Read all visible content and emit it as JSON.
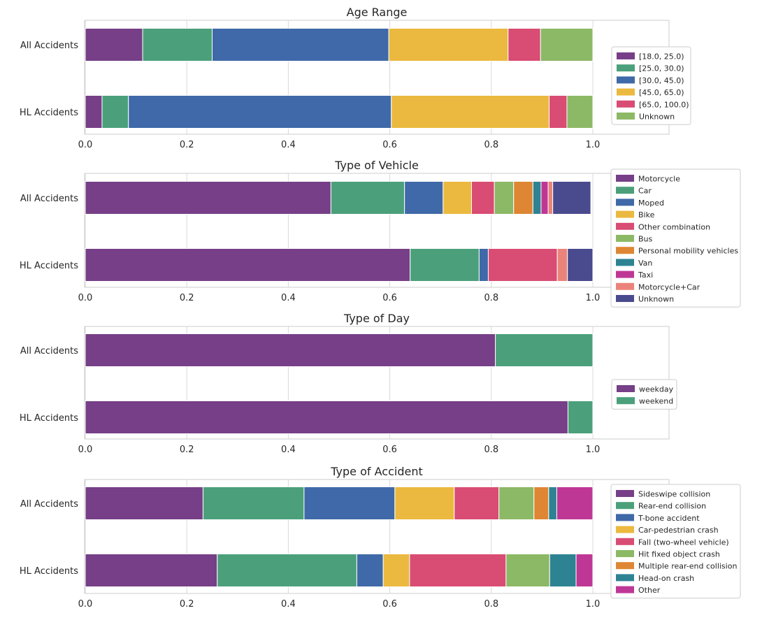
{
  "colors": {
    "c0": "#763F87",
    "c1": "#4BA07B",
    "c2": "#3F69A8",
    "c3": "#EBB93F",
    "c4": "#D94C73",
    "c5": "#8CB965",
    "c6": "#DE8634",
    "c7": "#2E8393",
    "c8": "#BF3795",
    "c9": "#EC837A",
    "c10": "#4A4A8E",
    "grid": "#d8d8d8",
    "text": "#262626"
  },
  "chart_data": [
    {
      "type": "bar",
      "orientation": "horizontal-stacked",
      "title": "Age Range",
      "categories": [
        "All Accidents",
        "HL Accidents"
      ],
      "xlim": [
        0,
        1
      ],
      "xticks": [
        "0.0",
        "0.2",
        "0.4",
        "0.6",
        "0.8",
        "1.0"
      ],
      "grid": true,
      "legend_position": "right",
      "series": [
        {
          "name": "[18.0, 25.0)",
          "color": "#763F87",
          "values": [
            0.113,
            0.033
          ]
        },
        {
          "name": "[25.0, 30.0)",
          "color": "#4BA07B",
          "values": [
            0.137,
            0.052
          ]
        },
        {
          "name": "[30.0, 45.0)",
          "color": "#3F69A8",
          "values": [
            0.348,
            0.518
          ]
        },
        {
          "name": "[45.0, 65.0)",
          "color": "#EBB93F",
          "values": [
            0.235,
            0.311
          ]
        },
        {
          "name": "[65.0, 100.0)",
          "color": "#D94C73",
          "values": [
            0.064,
            0.035
          ]
        },
        {
          "name": "Unknown",
          "color": "#8CB965",
          "values": [
            0.103,
            0.051
          ]
        }
      ]
    },
    {
      "type": "bar",
      "orientation": "horizontal-stacked",
      "title": "Type of Vehicle",
      "categories": [
        "All Accidents",
        "HL Accidents"
      ],
      "xlim": [
        0,
        1
      ],
      "xticks": [
        "0.0",
        "0.2",
        "0.4",
        "0.6",
        "0.8",
        "1.0"
      ],
      "grid": true,
      "legend_position": "right",
      "series": [
        {
          "name": "Motorcycle",
          "color": "#763F87",
          "values": [
            0.484,
            0.64
          ]
        },
        {
          "name": "Car",
          "color": "#4BA07B",
          "values": [
            0.145,
            0.136
          ]
        },
        {
          "name": "Moped",
          "color": "#3F69A8",
          "values": [
            0.076,
            0.018
          ]
        },
        {
          "name": "Bike",
          "color": "#EBB93F",
          "values": [
            0.056,
            0.0
          ]
        },
        {
          "name": "Other combination",
          "color": "#D94C73",
          "values": [
            0.045,
            0.136
          ]
        },
        {
          "name": "Bus",
          "color": "#8CB965",
          "values": [
            0.038,
            0.0
          ]
        },
        {
          "name": "Personal mobility vehicles",
          "color": "#DE8634",
          "values": [
            0.038,
            0.0
          ]
        },
        {
          "name": "Van",
          "color": "#2E8393",
          "values": [
            0.016,
            0.0
          ]
        },
        {
          "name": "Taxi",
          "color": "#BF3795",
          "values": [
            0.014,
            0.0
          ]
        },
        {
          "name": "Motorcycle+Car",
          "color": "#EC837A",
          "values": [
            0.009,
            0.02
          ]
        },
        {
          "name": "Unknown",
          "color": "#4A4A8E",
          "values": [
            0.075,
            0.05
          ]
        }
      ]
    },
    {
      "type": "bar",
      "orientation": "horizontal-stacked",
      "title": "Type of Day",
      "categories": [
        "All Accidents",
        "HL Accidents"
      ],
      "xlim": [
        0,
        1
      ],
      "xticks": [
        "0.0",
        "0.2",
        "0.4",
        "0.6",
        "0.8",
        "1.0"
      ],
      "grid": true,
      "legend_position": "right",
      "series": [
        {
          "name": "weekday",
          "color": "#763F87",
          "values": [
            0.808,
            0.951
          ]
        },
        {
          "name": "weekend",
          "color": "#4BA07B",
          "values": [
            0.192,
            0.049
          ]
        }
      ]
    },
    {
      "type": "bar",
      "orientation": "horizontal-stacked",
      "title": "Type of Accident",
      "categories": [
        "All Accidents",
        "HL Accidents"
      ],
      "xlim": [
        0,
        1
      ],
      "xticks": [
        "0.0",
        "0.2",
        "0.4",
        "0.6",
        "0.8",
        "1.0"
      ],
      "grid": true,
      "legend_position": "right",
      "series": [
        {
          "name": "Sideswipe collision",
          "color": "#763F87",
          "values": [
            0.232,
            0.26
          ]
        },
        {
          "name": "Rear-end collision",
          "color": "#4BA07B",
          "values": [
            0.199,
            0.275
          ]
        },
        {
          "name": "T-bone accident",
          "color": "#3F69A8",
          "values": [
            0.179,
            0.052
          ]
        },
        {
          "name": "Car-pedestrian crash",
          "color": "#EBB93F",
          "values": [
            0.117,
            0.052
          ]
        },
        {
          "name": "Fall (two-wheel vehicle)",
          "color": "#D94C73",
          "values": [
            0.088,
            0.19
          ]
        },
        {
          "name": "Hit fixed object crash",
          "color": "#8CB965",
          "values": [
            0.069,
            0.086
          ]
        },
        {
          "name": "Multiple rear-end collision",
          "color": "#DE8634",
          "values": [
            0.029,
            0.0
          ]
        },
        {
          "name": "Head-on crash",
          "color": "#2E8393",
          "values": [
            0.016,
            0.052
          ]
        },
        {
          "name": "Other",
          "color": "#BF3795",
          "values": [
            0.071,
            0.033
          ]
        }
      ]
    }
  ]
}
